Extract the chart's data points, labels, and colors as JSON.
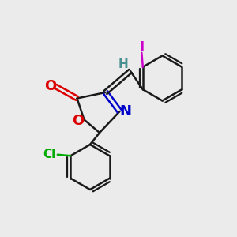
{
  "background_color": "#ebebeb",
  "line_color": "#1a1a1a",
  "line_width": 1.8,
  "bond_colors": {
    "C": "#1a1a1a",
    "O": "#dd0000",
    "N": "#0000cc",
    "Cl": "#00aa00",
    "I": "#cc00cc",
    "H": "#4a9090"
  },
  "figsize": [
    3.0,
    3.0
  ],
  "dpi": 100
}
